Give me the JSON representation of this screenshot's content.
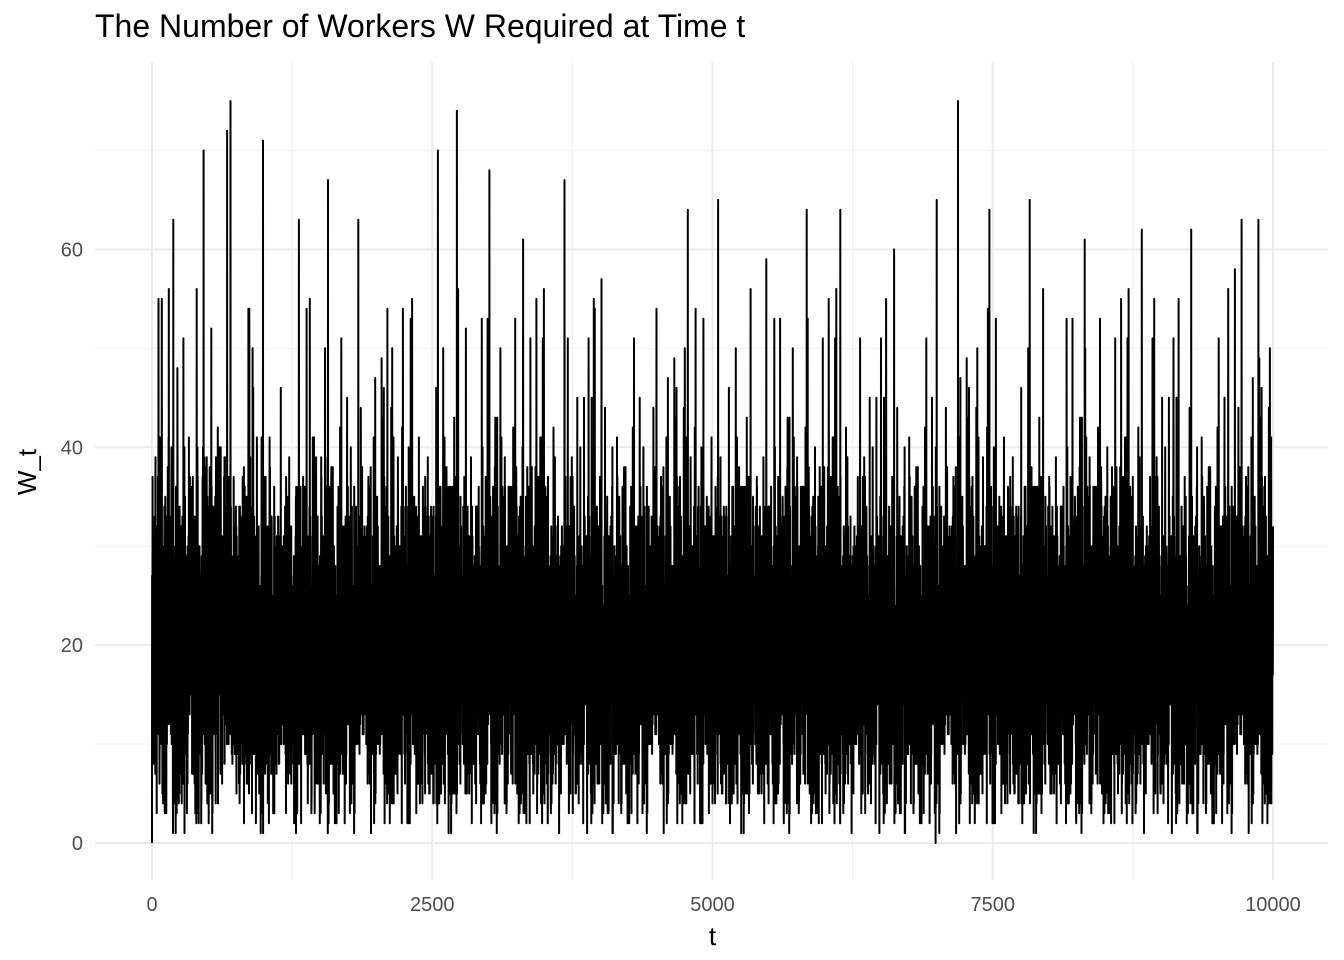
{
  "chart_data": {
    "type": "line",
    "title": "The Number of Workers W Required at Time t",
    "xlabel": "t",
    "ylabel": "W_t",
    "xlim": [
      0,
      10000
    ],
    "ylim": [
      0,
      75
    ],
    "x_ticks": [
      0,
      2500,
      5000,
      7500,
      10000
    ],
    "x_tick_labels": [
      "0",
      "2500",
      "5000",
      "7500",
      "10000"
    ],
    "y_ticks": [
      0,
      20,
      40,
      60
    ],
    "y_tick_labels": [
      "0",
      "20",
      "40",
      "60"
    ],
    "grid": true,
    "legend": "none",
    "series": [
      {
        "line_color": "#000000",
        "n_points": 10001,
        "typical_range": [
          5,
          35
        ],
        "x": [
          0,
          30,
          70,
          190,
          280,
          460,
          600,
          670,
          700,
          860,
          990,
          1310,
          1570,
          1840,
          2100,
          2320,
          2550,
          2720,
          2800,
          3010,
          3310,
          3680,
          3950,
          4010,
          4500,
          4780,
          5050,
          5480,
          5840,
          6140,
          6620,
          6990,
          7000,
          7190,
          7470,
          7830,
          8320,
          8830,
          8940,
          9270,
          9600,
          9660,
          9720,
          9870,
          10000
        ],
        "y": [
          0,
          37,
          41,
          63,
          51,
          70,
          40,
          72,
          75,
          54,
          71,
          63,
          67,
          63,
          54,
          55,
          70,
          74,
          52,
          68,
          61,
          67,
          54,
          57,
          54,
          64,
          65,
          59,
          64,
          64,
          60,
          0,
          65,
          75,
          64,
          65,
          61,
          62,
          55,
          62,
          56,
          58,
          63,
          63,
          32
        ]
      }
    ]
  }
}
